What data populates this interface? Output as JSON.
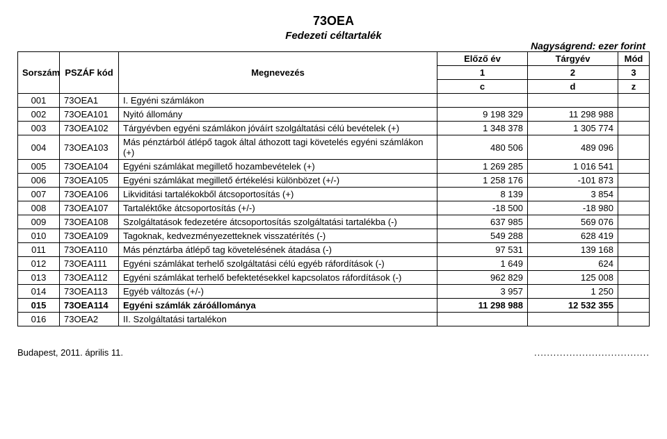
{
  "title": {
    "code": "73OEA",
    "name": "Fedezeti céltartalék",
    "scale": "Nagyságrend: ezer forint"
  },
  "headers": {
    "sorszam": "Sorszám",
    "pszaf": "PSZÁF kód",
    "megnevezes": "Megnevezés",
    "elozo": "Előző év",
    "targyev": "Tárgyév",
    "mod": "Mód",
    "n1": "1",
    "n2": "2",
    "n3": "3",
    "c": "c",
    "d": "d",
    "z": "z"
  },
  "rows": [
    {
      "sor": "001",
      "kod": "73OEA1",
      "meg": "I. Egyéni számlákon",
      "e": "",
      "t": "",
      "m": "",
      "bold": false
    },
    {
      "sor": "002",
      "kod": "73OEA101",
      "meg": "Nyitó állomány",
      "e": "9 198 329",
      "t": "11 298 988",
      "m": "",
      "bold": false
    },
    {
      "sor": "003",
      "kod": "73OEA102",
      "meg": "Tárgyévben egyéni számlákon jóváírt szolgáltatási célú bevételek (+)",
      "e": "1 348 378",
      "t": "1 305 774",
      "m": "",
      "bold": false
    },
    {
      "sor": "004",
      "kod": "73OEA103",
      "meg": "Más pénztárból átlépő tagok által áthozott tagi követelés egyéni számlákon (+)",
      "e": "480 506",
      "t": "489 096",
      "m": "",
      "bold": false
    },
    {
      "sor": "005",
      "kod": "73OEA104",
      "meg": "Egyéni számlákat megillető hozambevételek (+)",
      "e": "1 269 285",
      "t": "1 016 541",
      "m": "",
      "bold": false
    },
    {
      "sor": "006",
      "kod": "73OEA105",
      "meg": "Egyéni számlákat megillető értékelési különbözet (+/-)",
      "e": "1 258 176",
      "t": "-101 873",
      "m": "",
      "bold": false
    },
    {
      "sor": "007",
      "kod": "73OEA106",
      "meg": "Likviditási tartalékokből átcsoportosítás (+)",
      "e": "8 139",
      "t": "3 854",
      "m": "",
      "bold": false
    },
    {
      "sor": "008",
      "kod": "73OEA107",
      "meg": "Tartaléktőke átcsoportosítás (+/-)",
      "e": "-18 500",
      "t": "-18 980",
      "m": "",
      "bold": false
    },
    {
      "sor": "009",
      "kod": "73OEA108",
      "meg": "Szolgáltatások fedezetére átcsoportosítás szolgáltatási tartalékba (-)",
      "e": "637 985",
      "t": "569 076",
      "m": "",
      "bold": false
    },
    {
      "sor": "010",
      "kod": "73OEA109",
      "meg": "Tagoknak, kedvezményezetteknek visszatérítés (-)",
      "e": "549 288",
      "t": "628 419",
      "m": "",
      "bold": false
    },
    {
      "sor": "011",
      "kod": "73OEA110",
      "meg": "Más pénztárba átlépő tag követelésének átadása (-)",
      "e": "97 531",
      "t": "139 168",
      "m": "",
      "bold": false
    },
    {
      "sor": "012",
      "kod": "73OEA111",
      "meg": "Egyéni számlákat terhelő szolgáltatási célú egyéb ráfordítások (-)",
      "e": "1 649",
      "t": "624",
      "m": "",
      "bold": false
    },
    {
      "sor": "013",
      "kod": "73OEA112",
      "meg": "Egyéni számlákat terhelő befektetésekkel kapcsolatos ráfordítások (-)",
      "e": "962 829",
      "t": "125 008",
      "m": "",
      "bold": false
    },
    {
      "sor": "014",
      "kod": "73OEA113",
      "meg": "Egyéb változás (+/-)",
      "e": "3 957",
      "t": "1 250",
      "m": "",
      "bold": false
    },
    {
      "sor": "015",
      "kod": "73OEA114",
      "meg": "Egyéni számlák záróállománya",
      "e": "11 298 988",
      "t": "12 532 355",
      "m": "",
      "bold": true
    },
    {
      "sor": "016",
      "kod": "73OEA2",
      "meg": "II. Szolgáltatási tartalékon",
      "e": "",
      "t": "",
      "m": "",
      "bold": false
    }
  ],
  "footer": {
    "date": "Budapest, 2011. április 11.",
    "dots": "...................................."
  }
}
